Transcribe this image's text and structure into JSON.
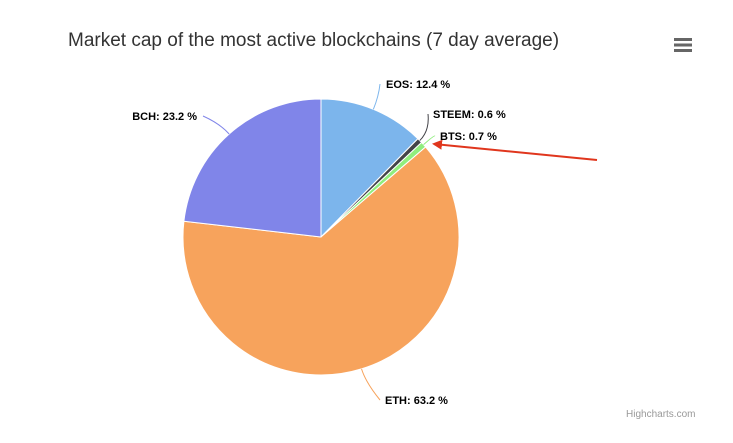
{
  "chart_data": {
    "type": "pie",
    "title": "Market cap of the most active blockchains (7 day average)",
    "unit_suffix": " %",
    "slices": [
      {
        "name": "EOS",
        "value": 12.4,
        "color": "#7cb5ec"
      },
      {
        "name": "STEEM",
        "value": 0.6,
        "color": "#434348"
      },
      {
        "name": "BTS",
        "value": 0.7,
        "color": "#90ed7d"
      },
      {
        "name": "ETH",
        "value": 63.2,
        "color": "#f7a35c"
      },
      {
        "name": "BCH",
        "value": 23.2,
        "color": "#8085e9"
      }
    ]
  },
  "menu": {
    "icon": "hamburger-menu-icon"
  },
  "credits": {
    "text": "Highcharts.com"
  },
  "annotation": {
    "type": "arrow",
    "color": "#e0361d",
    "points_to": "BTS"
  }
}
